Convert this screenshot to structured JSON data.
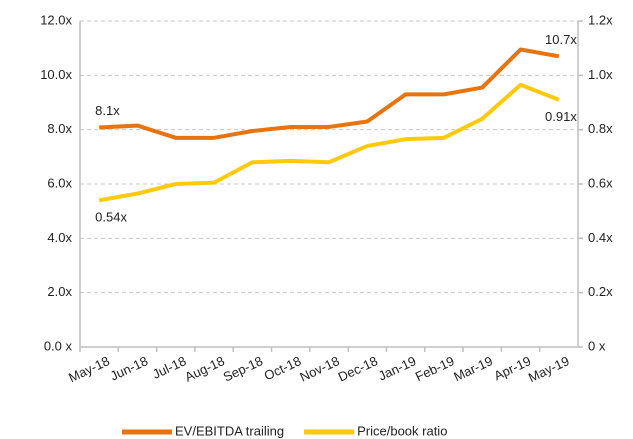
{
  "chart_data": {
    "type": "line",
    "categories": [
      "May-18",
      "Jun-18",
      "Jul-18",
      "Aug-18",
      "Sep-18",
      "Oct-18",
      "Nov-18",
      "Dec-18",
      "Jan-19",
      "Feb-19",
      "Mar-19",
      "Apr-19",
      "May-19"
    ],
    "series": [
      {
        "name": "EV/EBITDA trailing",
        "color": "#e8740f",
        "values": [
          8.08,
          8.15,
          7.7,
          7.7,
          7.95,
          8.1,
          8.1,
          8.3,
          9.3,
          9.3,
          9.55,
          10.95,
          10.7
        ],
        "value_labels": [
          "8.1x",
          null,
          null,
          null,
          null,
          null,
          null,
          null,
          null,
          null,
          null,
          null,
          "10.7x"
        ]
      },
      {
        "name": "Price/book ratio",
        "color": "#ffc90e",
        "axis": "y2",
        "values": [
          0.54,
          0.565,
          0.6,
          0.605,
          0.68,
          0.685,
          0.68,
          0.74,
          0.765,
          0.77,
          0.84,
          0.965,
          0.91
        ],
        "value_labels": [
          "0.54x",
          null,
          null,
          null,
          null,
          null,
          null,
          null,
          null,
          null,
          null,
          null,
          "0.91x"
        ]
      }
    ],
    "ylim": [
      0,
      12
    ],
    "yticks": [
      {
        "value": 0,
        "label": "0.0 x"
      },
      {
        "value": 2,
        "label": "2.0x"
      },
      {
        "value": 4,
        "label": "4.0x"
      },
      {
        "value": 6,
        "label": "6.0x"
      },
      {
        "value": 8,
        "label": "8.0x"
      },
      {
        "value": 10,
        "label": "10.0x"
      },
      {
        "value": 12,
        "label": "12.0x"
      }
    ],
    "y2lim": [
      0,
      1.2
    ],
    "y2ticks": [
      {
        "value": 0,
        "label": "0 x"
      },
      {
        "value": 0.2,
        "label": "0.2x"
      },
      {
        "value": 0.4,
        "label": "0.4x"
      },
      {
        "value": 0.6,
        "label": "0.6x"
      },
      {
        "value": 0.8,
        "label": "0.8x"
      },
      {
        "value": 1.0,
        "label": "1.0x"
      },
      {
        "value": 1.2,
        "label": "1.2x"
      }
    ],
    "grid": true,
    "legend": "bottom"
  }
}
